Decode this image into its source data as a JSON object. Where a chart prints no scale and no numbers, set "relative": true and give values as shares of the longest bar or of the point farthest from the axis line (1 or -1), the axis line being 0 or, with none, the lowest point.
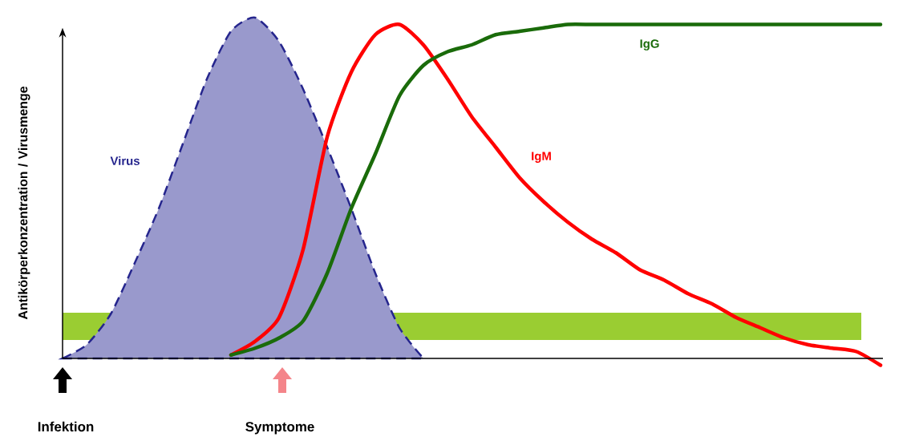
{
  "chart_data": {
    "type": "line",
    "relative": true,
    "ylabel": "Antikörperkonzentration / Virusmenge",
    "categories": [
      null,
      null,
      null,
      null,
      null,
      null,
      null,
      null,
      null,
      null,
      null,
      null,
      null,
      null,
      null,
      null,
      null,
      null,
      null,
      null,
      null,
      null,
      null,
      null,
      null,
      null,
      null,
      null,
      null,
      null,
      null,
      null,
      null,
      null,
      null
    ],
    "series": [
      {
        "name": "Virus",
        "type": "area",
        "color": "#9999cc",
        "line_style": "dashed",
        "values": [
          0,
          0.04,
          0.13,
          0.28,
          0.44,
          0.63,
          0.82,
          0.96,
          1.0,
          0.93,
          0.79,
          0.62,
          0.44,
          0.25,
          0.09,
          0,
          null,
          null,
          null,
          null,
          null,
          null,
          null,
          null,
          null,
          null,
          null,
          null,
          null,
          null,
          null,
          null,
          null,
          null,
          null
        ]
      },
      {
        "name": "IgM",
        "type": "line",
        "color": "#ff0000",
        "values": [
          null,
          null,
          null,
          null,
          null,
          null,
          null,
          0.01,
          0.05,
          0.12,
          0.32,
          0.65,
          0.84,
          0.95,
          0.98,
          0.92,
          0.82,
          0.71,
          0.62,
          0.53,
          0.46,
          0.4,
          0.35,
          0.31,
          0.26,
          0.23,
          0.19,
          0.16,
          0.12,
          0.09,
          0.06,
          0.04,
          0.03,
          0.02,
          -0.02
        ]
      },
      {
        "name": "IgG",
        "type": "line",
        "color": "#1a6b0a",
        "values": [
          null,
          null,
          null,
          null,
          null,
          null,
          null,
          0.01,
          0.03,
          0.06,
          0.11,
          0.25,
          0.44,
          0.6,
          0.77,
          0.86,
          0.9,
          0.92,
          0.95,
          0.96,
          0.97,
          0.98,
          0.98,
          0.98,
          0.98,
          0.98,
          0.98,
          0.98,
          0.98,
          0.98,
          0.98,
          0.98,
          0.98,
          0.98,
          0.98
        ]
      }
    ],
    "bands": [
      {
        "axis": "y",
        "from": 0.054,
        "to": 0.134,
        "color": "#9acd32"
      }
    ],
    "annotations": [
      "Infektion",
      "Symptome"
    ]
  }
}
